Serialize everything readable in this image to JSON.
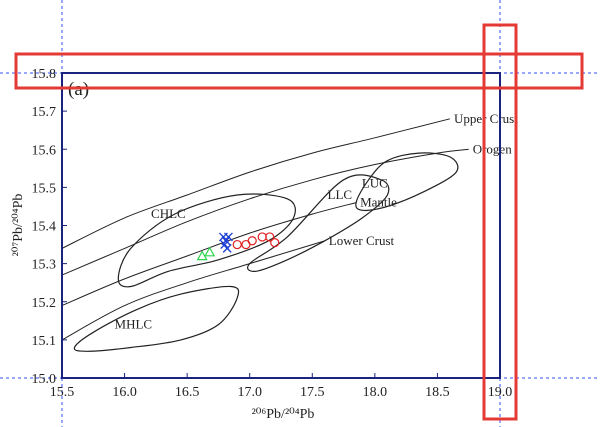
{
  "chart_data": {
    "type": "scatter",
    "panel_label": "(a)",
    "xlabel": "²⁰⁶Pb/²⁰⁴Pb",
    "ylabel": "²⁰⁷Pb/²⁰⁴Pb",
    "xlim": [
      15.5,
      19.0
    ],
    "ylim": [
      15.0,
      15.8
    ],
    "x_ticks": [
      "15.5",
      "16.0",
      "16.5",
      "17.0",
      "17.5",
      "18.0",
      "18.5",
      "19.0"
    ],
    "y_ticks": [
      "15.0",
      "15.1",
      "15.2",
      "15.3",
      "15.4",
      "15.5",
      "15.6",
      "15.7",
      "15.8"
    ],
    "grid": false,
    "evolution_curves": [
      {
        "label": "Upper Crust",
        "points": [
          [
            15.5,
            15.34
          ],
          [
            16.0,
            15.42
          ],
          [
            16.5,
            15.48
          ],
          [
            17.0,
            15.54
          ],
          [
            17.5,
            15.59
          ],
          [
            18.0,
            15.63
          ],
          [
            18.6,
            15.68
          ]
        ]
      },
      {
        "label": "Orogen",
        "points": [
          [
            15.5,
            15.27
          ],
          [
            16.0,
            15.34
          ],
          [
            16.5,
            15.41
          ],
          [
            17.0,
            15.47
          ],
          [
            17.5,
            15.52
          ],
          [
            18.0,
            15.56
          ],
          [
            18.5,
            15.59
          ],
          [
            18.75,
            15.6
          ]
        ]
      },
      {
        "label": "Mantle",
        "points": [
          [
            15.5,
            15.19
          ],
          [
            16.0,
            15.26
          ],
          [
            16.5,
            15.32
          ],
          [
            17.0,
            15.38
          ],
          [
            17.5,
            15.43
          ],
          [
            17.85,
            15.46
          ]
        ]
      },
      {
        "label": "Lower Crust",
        "points": [
          [
            15.5,
            15.1
          ],
          [
            16.0,
            15.19
          ],
          [
            16.5,
            15.25
          ],
          [
            17.0,
            15.3
          ],
          [
            17.5,
            15.35
          ],
          [
            17.6,
            15.36
          ]
        ]
      }
    ],
    "regions": [
      {
        "label": "CHLC",
        "label_at": [
          16.35,
          15.42
        ],
        "points": [
          [
            15.95,
            15.26
          ],
          [
            16.05,
            15.34
          ],
          [
            16.4,
            15.43
          ],
          [
            16.9,
            15.48
          ],
          [
            17.3,
            15.47
          ],
          [
            17.35,
            15.42
          ],
          [
            17.15,
            15.36
          ],
          [
            16.75,
            15.31
          ],
          [
            16.35,
            15.28
          ],
          [
            16.05,
            15.24
          ]
        ]
      },
      {
        "label": "LLC",
        "label_at": [
          17.72,
          15.47
        ],
        "points": [
          [
            17.0,
            15.3
          ],
          [
            17.3,
            15.37
          ],
          [
            17.75,
            15.52
          ],
          [
            18.05,
            15.52
          ],
          [
            18.1,
            15.48
          ],
          [
            17.9,
            15.42
          ],
          [
            17.6,
            15.36
          ],
          [
            17.3,
            15.31
          ],
          [
            17.05,
            15.28
          ]
        ]
      },
      {
        "label": "LUC",
        "label_at": [
          18.0,
          15.5
        ],
        "points": [
          [
            17.85,
            15.46
          ],
          [
            17.95,
            15.52
          ],
          [
            18.1,
            15.57
          ],
          [
            18.35,
            15.59
          ],
          [
            18.6,
            15.58
          ],
          [
            18.65,
            15.54
          ],
          [
            18.4,
            15.49
          ],
          [
            18.1,
            15.45
          ],
          [
            17.9,
            15.44
          ]
        ]
      },
      {
        "label": "MHLC",
        "label_at": [
          16.07,
          15.13
        ],
        "points": [
          [
            15.6,
            15.08
          ],
          [
            15.75,
            15.12
          ],
          [
            16.1,
            15.18
          ],
          [
            16.45,
            15.22
          ],
          [
            16.85,
            15.24
          ],
          [
            16.9,
            15.21
          ],
          [
            16.75,
            15.14
          ],
          [
            16.45,
            15.1
          ],
          [
            16.05,
            15.08
          ],
          [
            15.7,
            15.07
          ]
        ]
      }
    ],
    "series": [
      {
        "marker": "x",
        "color": "#1f3fd6",
        "points": [
          [
            16.79,
            15.37
          ],
          [
            16.8,
            15.35
          ],
          [
            16.82,
            15.34
          ],
          [
            16.81,
            15.36
          ],
          [
            16.83,
            15.37
          ]
        ]
      },
      {
        "marker": "circle",
        "color": "#e02020",
        "points": [
          [
            16.9,
            15.35
          ],
          [
            16.97,
            15.35
          ],
          [
            17.02,
            15.36
          ],
          [
            17.1,
            15.37
          ],
          [
            17.16,
            15.37
          ],
          [
            17.2,
            15.355
          ]
        ]
      },
      {
        "marker": "triangle",
        "color": "#2bd44a",
        "points": [
          [
            16.62,
            15.32
          ],
          [
            16.68,
            15.33
          ]
        ]
      }
    ],
    "colors": {
      "axis": "#1a237e",
      "curve": "#222222",
      "guide": "#3050ff",
      "highlight": "#e53935"
    }
  }
}
